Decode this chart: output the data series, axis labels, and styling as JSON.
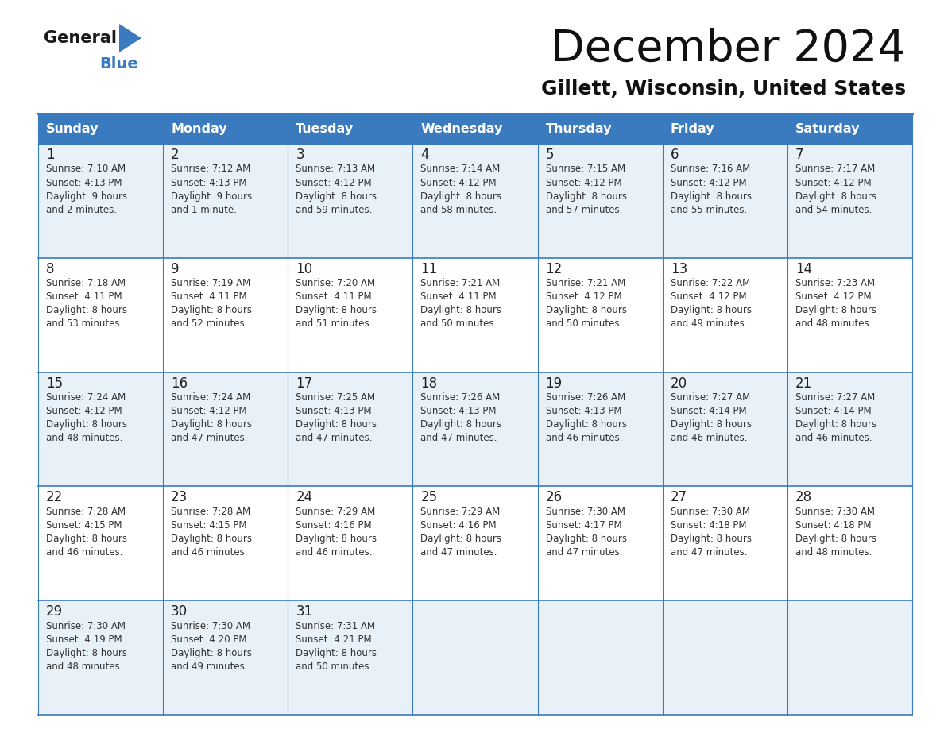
{
  "title": "December 2024",
  "subtitle": "Gillett, Wisconsin, United States",
  "header_color": "#3a7abf",
  "header_text_color": "#ffffff",
  "cell_bg_light": "#e8f0f8",
  "cell_bg_white": "#ffffff",
  "border_color": "#3a7abf",
  "day_number_color": "#222222",
  "text_color": "#333333",
  "day_headers": [
    "Sunday",
    "Monday",
    "Tuesday",
    "Wednesday",
    "Thursday",
    "Friday",
    "Saturday"
  ],
  "weeks": [
    [
      {
        "day": "1",
        "sunrise": "7:10 AM",
        "sunset": "4:13 PM",
        "daylight_line1": "Daylight: 9 hours",
        "daylight_line2": "and 2 minutes."
      },
      {
        "day": "2",
        "sunrise": "7:12 AM",
        "sunset": "4:13 PM",
        "daylight_line1": "Daylight: 9 hours",
        "daylight_line2": "and 1 minute."
      },
      {
        "day": "3",
        "sunrise": "7:13 AM",
        "sunset": "4:12 PM",
        "daylight_line1": "Daylight: 8 hours",
        "daylight_line2": "and 59 minutes."
      },
      {
        "day": "4",
        "sunrise": "7:14 AM",
        "sunset": "4:12 PM",
        "daylight_line1": "Daylight: 8 hours",
        "daylight_line2": "and 58 minutes."
      },
      {
        "day": "5",
        "sunrise": "7:15 AM",
        "sunset": "4:12 PM",
        "daylight_line1": "Daylight: 8 hours",
        "daylight_line2": "and 57 minutes."
      },
      {
        "day": "6",
        "sunrise": "7:16 AM",
        "sunset": "4:12 PM",
        "daylight_line1": "Daylight: 8 hours",
        "daylight_line2": "and 55 minutes."
      },
      {
        "day": "7",
        "sunrise": "7:17 AM",
        "sunset": "4:12 PM",
        "daylight_line1": "Daylight: 8 hours",
        "daylight_line2": "and 54 minutes."
      }
    ],
    [
      {
        "day": "8",
        "sunrise": "7:18 AM",
        "sunset": "4:11 PM",
        "daylight_line1": "Daylight: 8 hours",
        "daylight_line2": "and 53 minutes."
      },
      {
        "day": "9",
        "sunrise": "7:19 AM",
        "sunset": "4:11 PM",
        "daylight_line1": "Daylight: 8 hours",
        "daylight_line2": "and 52 minutes."
      },
      {
        "day": "10",
        "sunrise": "7:20 AM",
        "sunset": "4:11 PM",
        "daylight_line1": "Daylight: 8 hours",
        "daylight_line2": "and 51 minutes."
      },
      {
        "day": "11",
        "sunrise": "7:21 AM",
        "sunset": "4:11 PM",
        "daylight_line1": "Daylight: 8 hours",
        "daylight_line2": "and 50 minutes."
      },
      {
        "day": "12",
        "sunrise": "7:21 AM",
        "sunset": "4:12 PM",
        "daylight_line1": "Daylight: 8 hours",
        "daylight_line2": "and 50 minutes."
      },
      {
        "day": "13",
        "sunrise": "7:22 AM",
        "sunset": "4:12 PM",
        "daylight_line1": "Daylight: 8 hours",
        "daylight_line2": "and 49 minutes."
      },
      {
        "day": "14",
        "sunrise": "7:23 AM",
        "sunset": "4:12 PM",
        "daylight_line1": "Daylight: 8 hours",
        "daylight_line2": "and 48 minutes."
      }
    ],
    [
      {
        "day": "15",
        "sunrise": "7:24 AM",
        "sunset": "4:12 PM",
        "daylight_line1": "Daylight: 8 hours",
        "daylight_line2": "and 48 minutes."
      },
      {
        "day": "16",
        "sunrise": "7:24 AM",
        "sunset": "4:12 PM",
        "daylight_line1": "Daylight: 8 hours",
        "daylight_line2": "and 47 minutes."
      },
      {
        "day": "17",
        "sunrise": "7:25 AM",
        "sunset": "4:13 PM",
        "daylight_line1": "Daylight: 8 hours",
        "daylight_line2": "and 47 minutes."
      },
      {
        "day": "18",
        "sunrise": "7:26 AM",
        "sunset": "4:13 PM",
        "daylight_line1": "Daylight: 8 hours",
        "daylight_line2": "and 47 minutes."
      },
      {
        "day": "19",
        "sunrise": "7:26 AM",
        "sunset": "4:13 PM",
        "daylight_line1": "Daylight: 8 hours",
        "daylight_line2": "and 46 minutes."
      },
      {
        "day": "20",
        "sunrise": "7:27 AM",
        "sunset": "4:14 PM",
        "daylight_line1": "Daylight: 8 hours",
        "daylight_line2": "and 46 minutes."
      },
      {
        "day": "21",
        "sunrise": "7:27 AM",
        "sunset": "4:14 PM",
        "daylight_line1": "Daylight: 8 hours",
        "daylight_line2": "and 46 minutes."
      }
    ],
    [
      {
        "day": "22",
        "sunrise": "7:28 AM",
        "sunset": "4:15 PM",
        "daylight_line1": "Daylight: 8 hours",
        "daylight_line2": "and 46 minutes."
      },
      {
        "day": "23",
        "sunrise": "7:28 AM",
        "sunset": "4:15 PM",
        "daylight_line1": "Daylight: 8 hours",
        "daylight_line2": "and 46 minutes."
      },
      {
        "day": "24",
        "sunrise": "7:29 AM",
        "sunset": "4:16 PM",
        "daylight_line1": "Daylight: 8 hours",
        "daylight_line2": "and 46 minutes."
      },
      {
        "day": "25",
        "sunrise": "7:29 AM",
        "sunset": "4:16 PM",
        "daylight_line1": "Daylight: 8 hours",
        "daylight_line2": "and 47 minutes."
      },
      {
        "day": "26",
        "sunrise": "7:30 AM",
        "sunset": "4:17 PM",
        "daylight_line1": "Daylight: 8 hours",
        "daylight_line2": "and 47 minutes."
      },
      {
        "day": "27",
        "sunrise": "7:30 AM",
        "sunset": "4:18 PM",
        "daylight_line1": "Daylight: 8 hours",
        "daylight_line2": "and 47 minutes."
      },
      {
        "day": "28",
        "sunrise": "7:30 AM",
        "sunset": "4:18 PM",
        "daylight_line1": "Daylight: 8 hours",
        "daylight_line2": "and 48 minutes."
      }
    ],
    [
      {
        "day": "29",
        "sunrise": "7:30 AM",
        "sunset": "4:19 PM",
        "daylight_line1": "Daylight: 8 hours",
        "daylight_line2": "and 48 minutes."
      },
      {
        "day": "30",
        "sunrise": "7:30 AM",
        "sunset": "4:20 PM",
        "daylight_line1": "Daylight: 8 hours",
        "daylight_line2": "and 49 minutes."
      },
      {
        "day": "31",
        "sunrise": "7:31 AM",
        "sunset": "4:21 PM",
        "daylight_line1": "Daylight: 8 hours",
        "daylight_line2": "and 50 minutes."
      },
      null,
      null,
      null,
      null
    ]
  ],
  "logo_general_color": "#1a1a1a",
  "logo_blue_color": "#3a7abf",
  "logo_triangle_color": "#3a7abf"
}
